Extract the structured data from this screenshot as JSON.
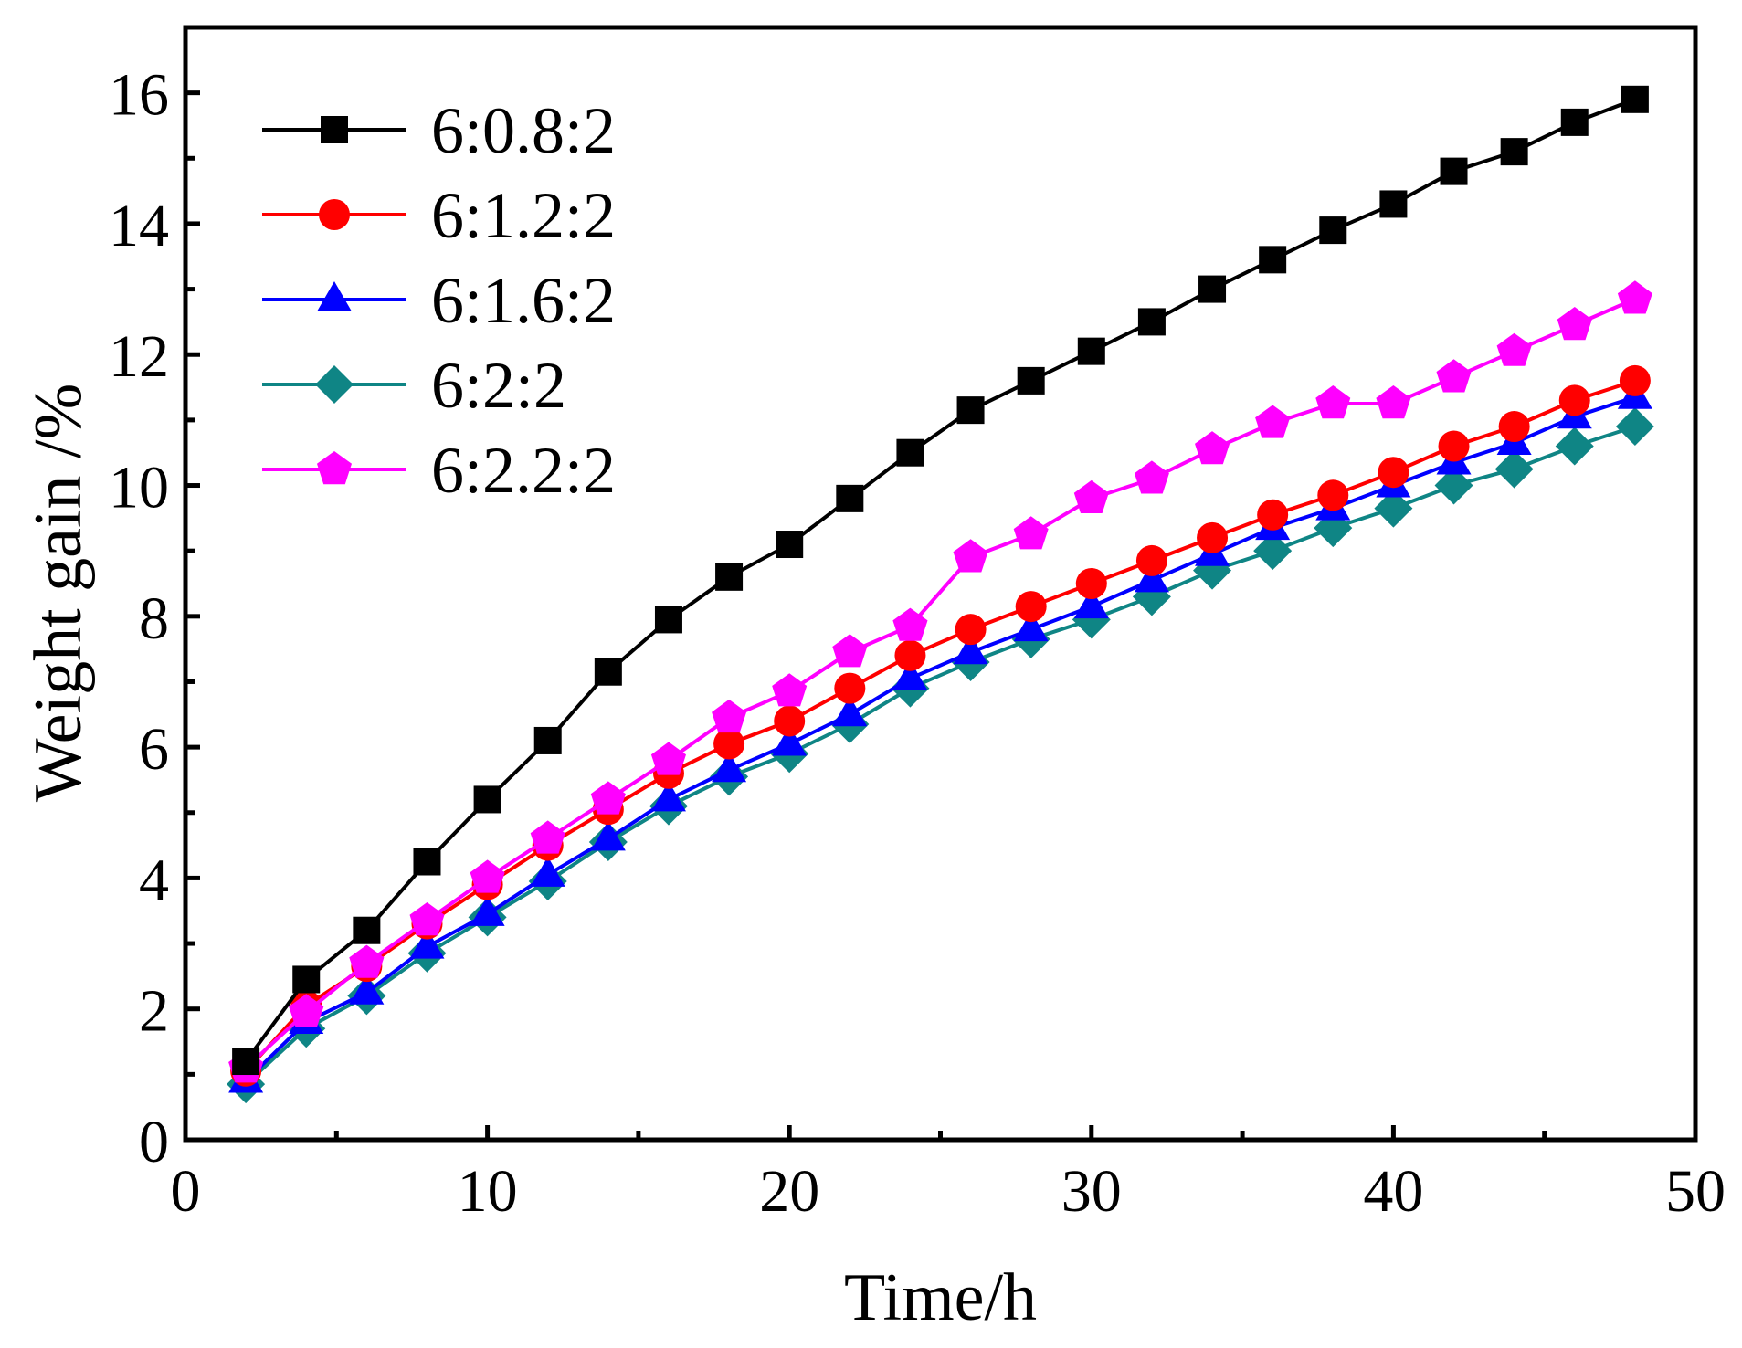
{
  "chart_data": {
    "type": "line",
    "title": "",
    "xlabel": "Time/h",
    "ylabel": "Weight gain /%",
    "xlim": [
      0,
      50
    ],
    "ylim": [
      0,
      17
    ],
    "xticks": [
      0,
      10,
      20,
      30,
      40,
      50
    ],
    "yticks": [
      0,
      2,
      4,
      6,
      8,
      10,
      12,
      14,
      16
    ],
    "xtick_labels": [
      "0",
      "10",
      "20",
      "30",
      "40",
      "50"
    ],
    "ytick_labels": [
      "0",
      "2",
      "4",
      "6",
      "8",
      "10",
      "12",
      "14",
      "16"
    ],
    "grid": false,
    "legend_position": "top-left",
    "x": [
      2,
      4,
      6,
      8,
      10,
      12,
      14,
      16,
      18,
      20,
      22,
      24,
      26,
      28,
      30,
      32,
      34,
      36,
      38,
      40,
      42,
      44,
      46,
      48
    ],
    "series": [
      {
        "name": "6:0.8:2",
        "color": "#000000",
        "marker": "square",
        "values": [
          1.2,
          2.45,
          3.2,
          4.25,
          5.2,
          6.1,
          7.15,
          7.95,
          8.6,
          9.1,
          9.8,
          10.5,
          11.15,
          11.6,
          12.05,
          12.5,
          13.0,
          13.45,
          13.9,
          14.3,
          14.8,
          15.1,
          15.55,
          15.9
        ]
      },
      {
        "name": "6:1.2:2",
        "color": "#ff0000",
        "marker": "circle",
        "values": [
          1.05,
          2.05,
          2.65,
          3.3,
          3.9,
          4.5,
          5.05,
          5.6,
          6.05,
          6.4,
          6.9,
          7.4,
          7.8,
          8.15,
          8.5,
          8.85,
          9.2,
          9.55,
          9.85,
          10.2,
          10.6,
          10.9,
          11.3,
          11.6
        ]
      },
      {
        "name": "6:1.6:2",
        "color": "#0000ff",
        "marker": "triangle",
        "values": [
          0.9,
          1.8,
          2.25,
          2.95,
          3.45,
          4.05,
          4.6,
          5.2,
          5.65,
          6.05,
          6.5,
          7.05,
          7.45,
          7.8,
          8.15,
          8.55,
          8.95,
          9.35,
          9.65,
          10.0,
          10.35,
          10.65,
          11.05,
          11.35
        ]
      },
      {
        "name": "6:2:2",
        "color": "#0f8585",
        "marker": "diamond",
        "values": [
          0.85,
          1.7,
          2.2,
          2.85,
          3.4,
          3.95,
          4.55,
          5.1,
          5.55,
          5.9,
          6.35,
          6.9,
          7.3,
          7.65,
          7.95,
          8.3,
          8.7,
          9.0,
          9.35,
          9.65,
          10.0,
          10.25,
          10.6,
          10.9
        ]
      },
      {
        "name": "6:2.2:2",
        "color": "#ff00ff",
        "marker": "pentagon",
        "values": [
          1.1,
          1.95,
          2.7,
          3.35,
          4.0,
          4.6,
          5.2,
          5.8,
          6.45,
          6.85,
          7.45,
          7.85,
          8.9,
          9.25,
          9.8,
          10.1,
          10.55,
          10.95,
          11.25,
          11.25,
          11.65,
          12.05,
          12.45,
          12.85
        ]
      }
    ]
  }
}
